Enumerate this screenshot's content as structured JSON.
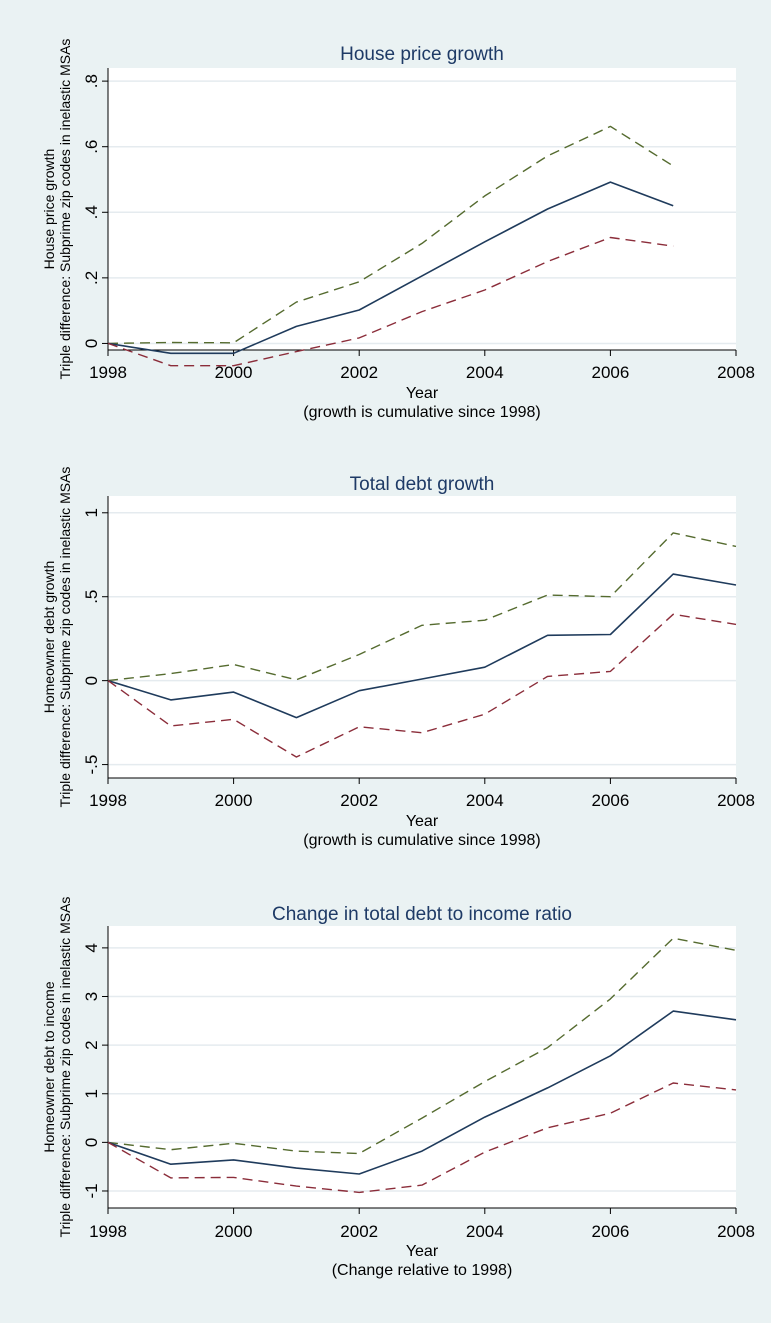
{
  "colors": {
    "background": "#eaf2f3",
    "plot_area": "#ffffff",
    "title": "#1e3a66",
    "grid": "#e5ebef",
    "point_estimate": "#1f3b5c",
    "upper_bound": "#556b2f",
    "lower_bound": "#8b2d3a"
  },
  "chart_data": [
    {
      "type": "line",
      "title": "House price growth",
      "xlabel": "Year",
      "note": "(growth is cumulative since 1998)",
      "ylabel_lines": [
        "Triple difference: Subprime zip codes in inelastic MSAs",
        "House price growth"
      ],
      "xlim": [
        1998,
        2008
      ],
      "ylim": [
        -0.02,
        0.84
      ],
      "xticks": [
        1998,
        2000,
        2002,
        2004,
        2006,
        2008
      ],
      "xtick_labels": [
        "1998",
        "2000",
        "2002",
        "2004",
        "2006",
        "2008"
      ],
      "yticks": [
        0,
        0.2,
        0.4,
        0.6,
        0.8
      ],
      "ytick_labels": [
        "0",
        ".2",
        ".4",
        ".6",
        ".8"
      ],
      "grid": true,
      "series": [
        {
          "style": "upper",
          "x": [
            1998,
            1999,
            2000,
            2001,
            2002,
            2003,
            2004,
            2005,
            2006,
            2007
          ],
          "values": [
            0.0,
            0.003,
            0.002,
            0.126,
            0.188,
            0.305,
            0.45,
            0.572,
            0.662,
            0.541
          ]
        },
        {
          "style": "estimate",
          "x": [
            1998,
            1999,
            2000,
            2001,
            2002,
            2003,
            2004,
            2005,
            2006,
            2007
          ],
          "values": [
            0.0,
            -0.03,
            -0.03,
            0.052,
            0.102,
            0.206,
            0.31,
            0.41,
            0.492,
            0.42
          ]
        },
        {
          "style": "lower",
          "x": [
            1998,
            1999,
            2000,
            2001,
            2002,
            2003,
            2004,
            2005,
            2006,
            2007
          ],
          "values": [
            0.0,
            -0.068,
            -0.068,
            -0.025,
            0.017,
            0.097,
            0.163,
            0.25,
            0.323,
            0.297
          ]
        }
      ]
    },
    {
      "type": "line",
      "title": "Total debt growth",
      "xlabel": "Year",
      "note": "(growth is cumulative since 1998)",
      "ylabel_lines": [
        "Triple difference: Subprime zip codes in inelastic MSAs",
        "Homeowner debt growth"
      ],
      "xlim": [
        1998,
        2008
      ],
      "ylim": [
        -0.58,
        1.1
      ],
      "xticks": [
        1998,
        2000,
        2002,
        2004,
        2006,
        2008
      ],
      "xtick_labels": [
        "1998",
        "2000",
        "2002",
        "2004",
        "2006",
        "2008"
      ],
      "yticks": [
        -0.5,
        0,
        0.5,
        1
      ],
      "ytick_labels": [
        "-.5",
        "0",
        ".5",
        "1"
      ],
      "grid": true,
      "series": [
        {
          "style": "upper",
          "x": [
            1998,
            1999,
            2000,
            2001,
            2002,
            2003,
            2004,
            2005,
            2006,
            2007,
            2008
          ],
          "values": [
            0.0,
            0.042,
            0.096,
            0.005,
            0.156,
            0.33,
            0.36,
            0.51,
            0.5,
            0.88,
            0.8
          ]
        },
        {
          "style": "estimate",
          "x": [
            1998,
            1999,
            2000,
            2001,
            2002,
            2003,
            2004,
            2005,
            2006,
            2007,
            2008
          ],
          "values": [
            0.0,
            -0.115,
            -0.068,
            -0.22,
            -0.06,
            0.01,
            0.08,
            0.27,
            0.275,
            0.635,
            0.57
          ]
        },
        {
          "style": "lower",
          "x": [
            1998,
            1999,
            2000,
            2001,
            2002,
            2003,
            2004,
            2005,
            2006,
            2007,
            2008
          ],
          "values": [
            0.0,
            -0.27,
            -0.23,
            -0.455,
            -0.275,
            -0.31,
            -0.2,
            0.025,
            0.055,
            0.395,
            0.335
          ]
        }
      ]
    },
    {
      "type": "line",
      "title": "Change in total debt to income ratio",
      "xlabel": "Year",
      "note": "(Change relative to 1998)",
      "ylabel_lines": [
        "Triple difference: Subprime zip codes in inelastic MSAs",
        "Homeowner debt to income"
      ],
      "xlim": [
        1998,
        2008
      ],
      "ylim": [
        -1.35,
        4.45
      ],
      "xticks": [
        1998,
        2000,
        2002,
        2004,
        2006,
        2008
      ],
      "xtick_labels": [
        "1998",
        "2000",
        "2002",
        "2004",
        "2006",
        "2008"
      ],
      "yticks": [
        -1,
        0,
        1,
        2,
        3,
        4
      ],
      "ytick_labels": [
        "-1",
        "0",
        "1",
        "2",
        "3",
        "4"
      ],
      "grid": true,
      "series": [
        {
          "style": "upper",
          "x": [
            1998,
            1999,
            2000,
            2001,
            2002,
            2003,
            2004,
            2005,
            2006,
            2007,
            2008
          ],
          "values": [
            0.0,
            -0.15,
            -0.02,
            -0.18,
            -0.23,
            0.5,
            1.25,
            1.95,
            2.95,
            4.2,
            3.95
          ]
        },
        {
          "style": "estimate",
          "x": [
            1998,
            1999,
            2000,
            2001,
            2002,
            2003,
            2004,
            2005,
            2006,
            2007,
            2008
          ],
          "values": [
            0.0,
            -0.45,
            -0.36,
            -0.53,
            -0.65,
            -0.18,
            0.52,
            1.12,
            1.78,
            2.7,
            2.52
          ]
        },
        {
          "style": "lower",
          "x": [
            1998,
            1999,
            2000,
            2001,
            2002,
            2003,
            2004,
            2005,
            2006,
            2007,
            2008
          ],
          "values": [
            0.0,
            -0.73,
            -0.72,
            -0.9,
            -1.03,
            -0.88,
            -0.2,
            0.3,
            0.6,
            1.22,
            1.08
          ]
        }
      ]
    }
  ]
}
